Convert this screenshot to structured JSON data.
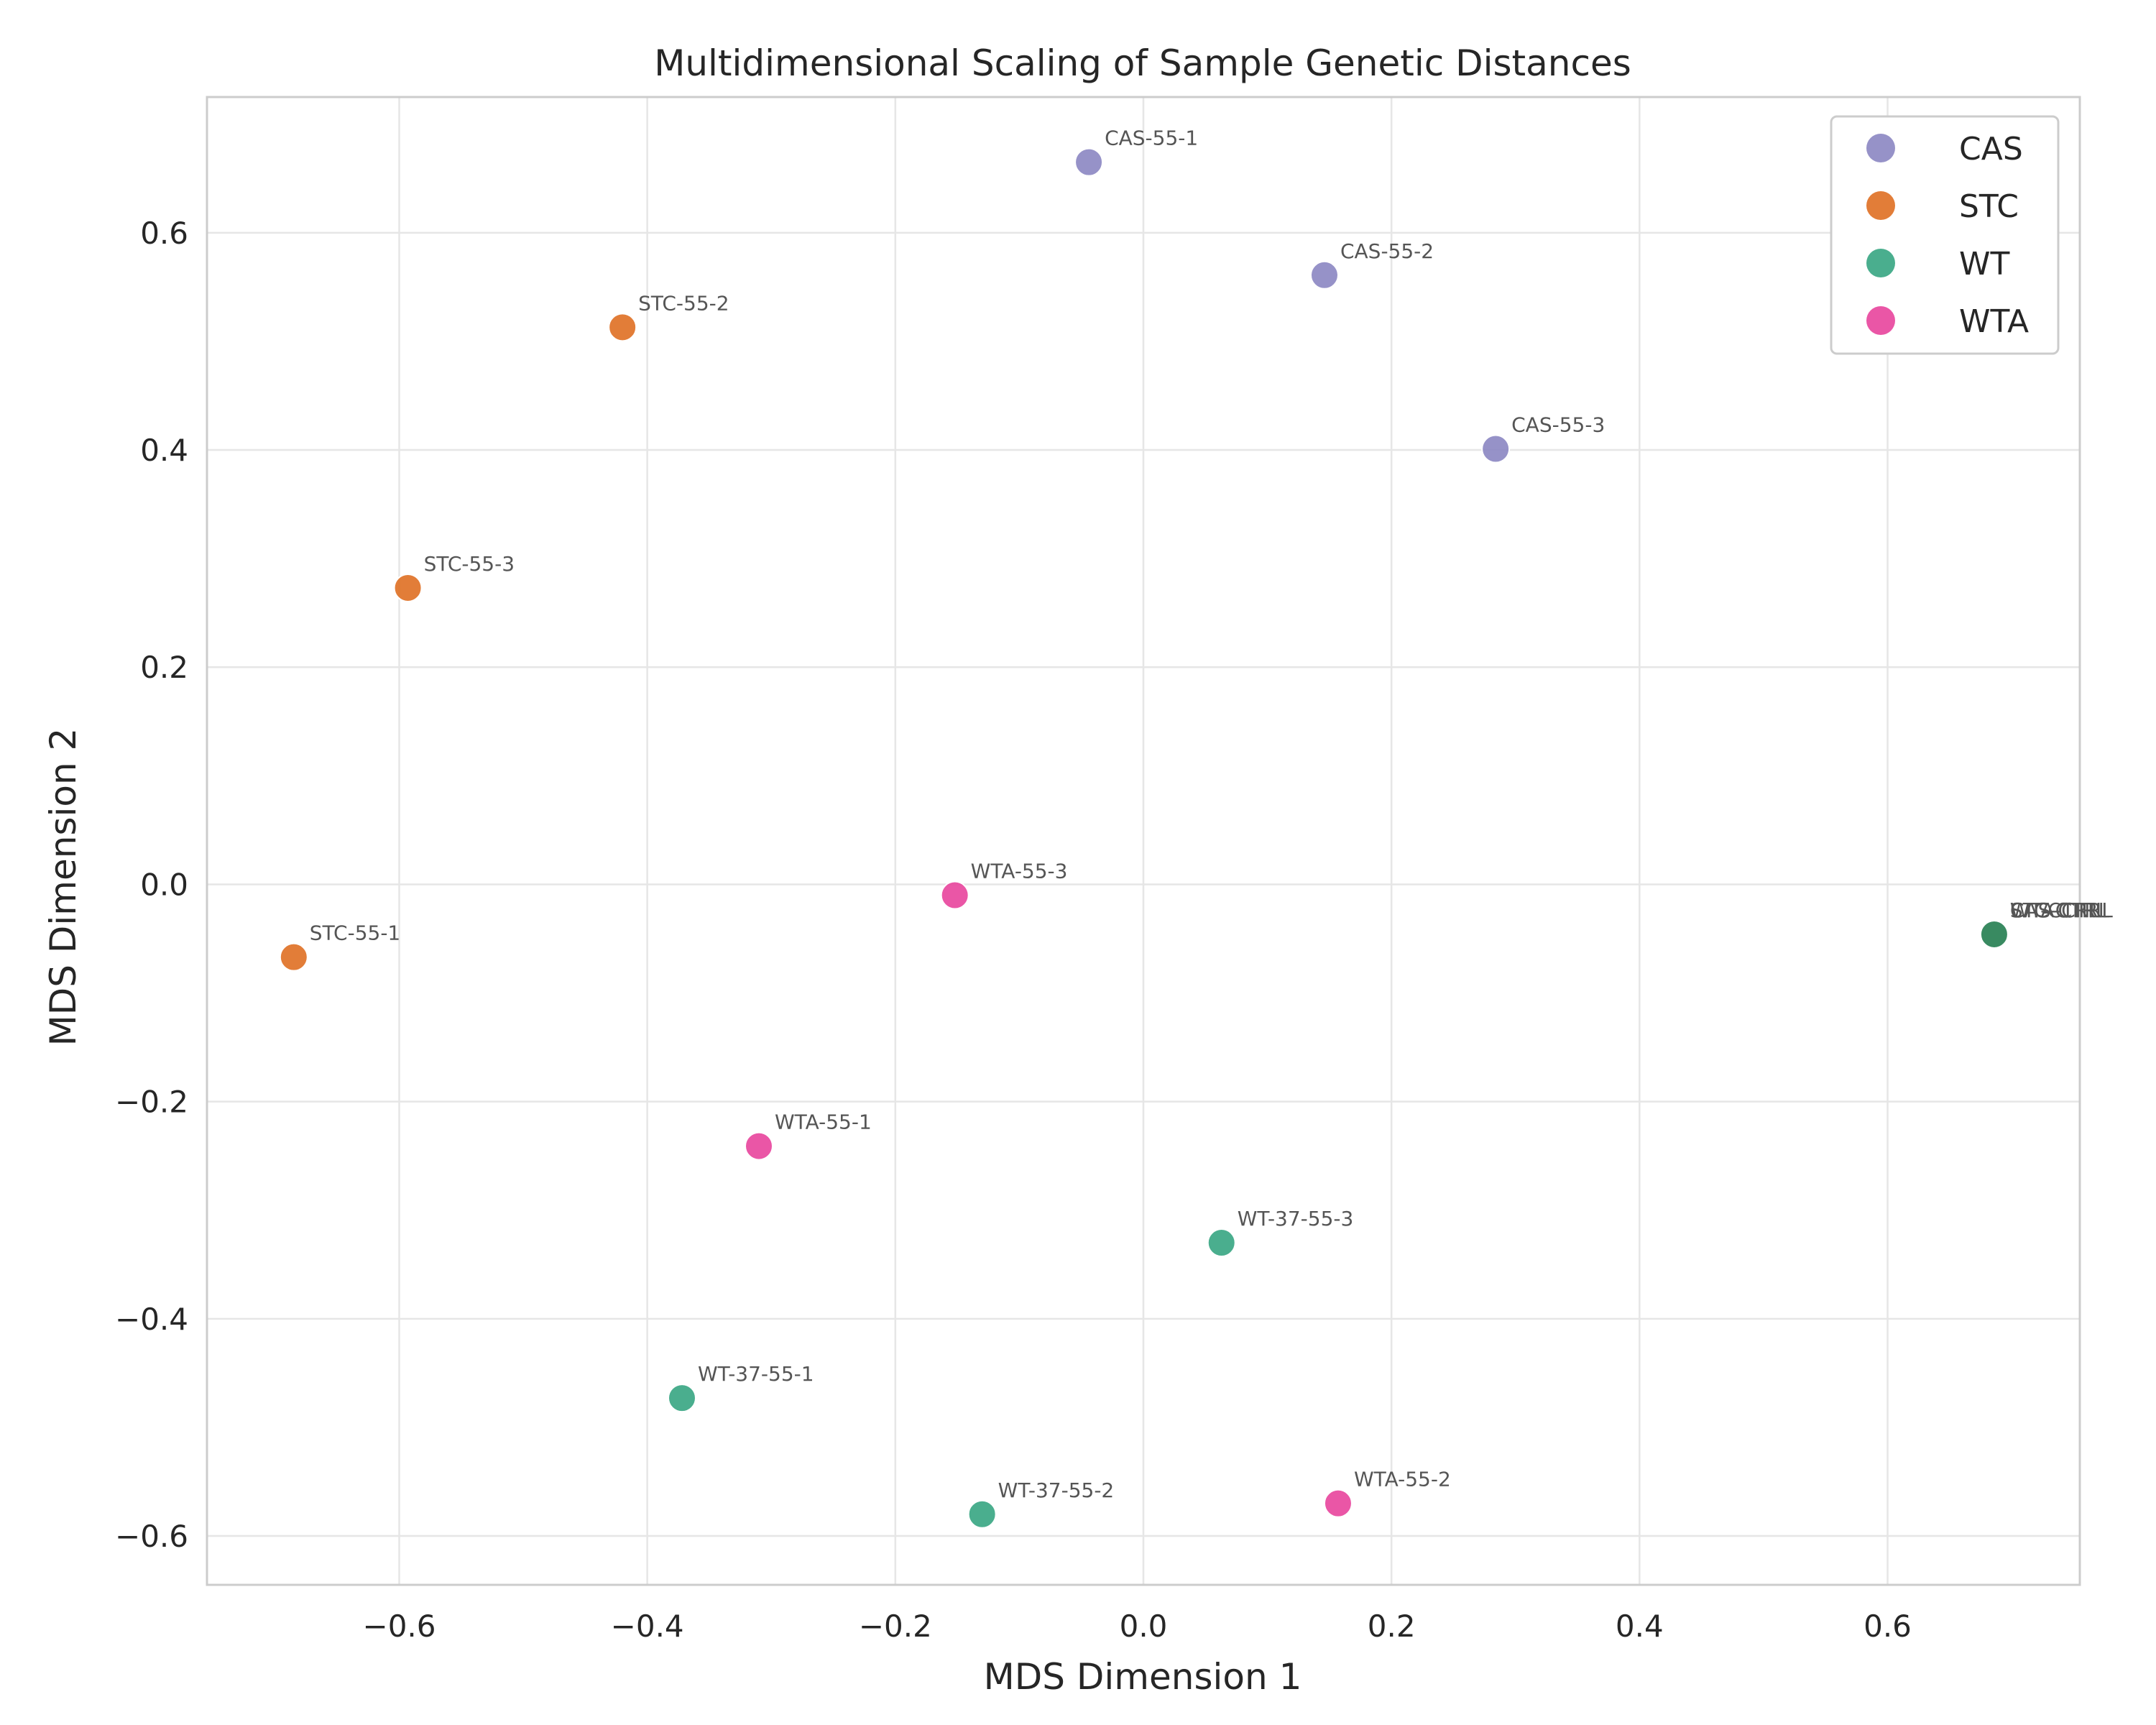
{
  "chart_data": {
    "type": "scatter",
    "title": "Multidimensional Scaling of Sample Genetic Distances",
    "xlabel": "MDS Dimension 1",
    "ylabel": "MDS Dimension 2",
    "xlim": [
      -0.755,
      0.755
    ],
    "ylim": [
      -0.645,
      0.725
    ],
    "xticks": [
      -0.6,
      -0.4,
      -0.2,
      0.0,
      0.2,
      0.4,
      0.6
    ],
    "xtick_labels": [
      "−0.6",
      "−0.4",
      "−0.2",
      "0.0",
      "0.2",
      "0.4",
      "0.6"
    ],
    "yticks": [
      -0.6,
      -0.4,
      -0.2,
      0.0,
      0.2,
      0.4,
      0.6
    ],
    "ytick_labels": [
      "−0.6",
      "−0.4",
      "−0.2",
      "0.0",
      "0.2",
      "0.4",
      "0.6"
    ],
    "grid": true,
    "legend_position": "top-right",
    "series": [
      {
        "name": "CAS",
        "color": "#8b86c2",
        "points": [
          {
            "label": "CAS-55-1",
            "x": -0.044,
            "y": 0.665
          },
          {
            "label": "CAS-55-2",
            "x": 0.146,
            "y": 0.561
          },
          {
            "label": "CAS-55-3",
            "x": 0.284,
            "y": 0.401
          },
          {
            "label": "CAS-CTRL",
            "x": 0.686,
            "y": -0.046
          }
        ]
      },
      {
        "name": "STC",
        "color": "#df6f22",
        "points": [
          {
            "label": "STC-55-2",
            "x": -0.42,
            "y": 0.513
          },
          {
            "label": "STC-55-3",
            "x": -0.593,
            "y": 0.273
          },
          {
            "label": "STC-55-1",
            "x": -0.685,
            "y": -0.067
          },
          {
            "label": "STC-CTRL",
            "x": 0.686,
            "y": -0.046
          }
        ]
      },
      {
        "name": "WT",
        "color": "#36a582",
        "points": [
          {
            "label": "WT-37-55-3",
            "x": 0.063,
            "y": -0.33
          },
          {
            "label": "WT-37-55-1",
            "x": -0.372,
            "y": -0.473
          },
          {
            "label": "WT-37-55-2",
            "x": -0.13,
            "y": -0.58
          },
          {
            "label": "WT-CTRL",
            "x": 0.686,
            "y": -0.046
          }
        ]
      },
      {
        "name": "WTA",
        "color": "#e8449c",
        "points": [
          {
            "label": "WTA-55-3",
            "x": -0.152,
            "y": -0.01
          },
          {
            "label": "WTA-55-1",
            "x": -0.31,
            "y": -0.241
          },
          {
            "label": "WTA-55-2",
            "x": 0.157,
            "y": -0.57
          },
          {
            "label": "WTA-CTRL",
            "x": 0.686,
            "y": -0.046
          }
        ]
      }
    ],
    "overlap_marker_color": "#3a8a62"
  }
}
